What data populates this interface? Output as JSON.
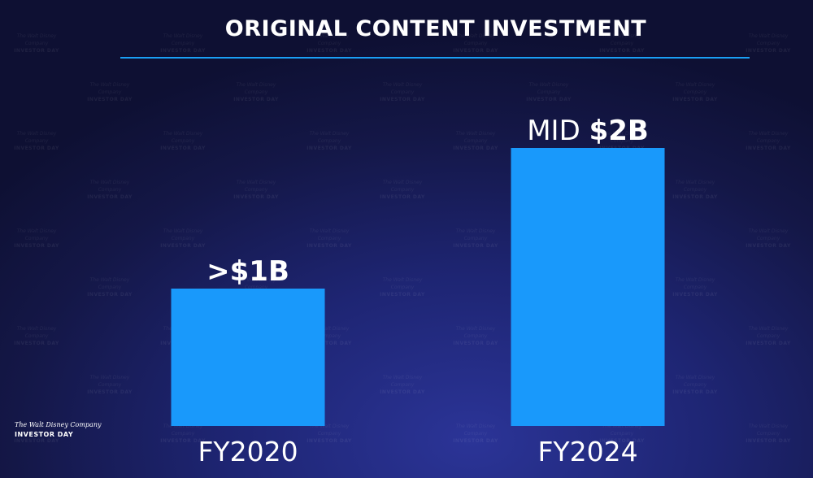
{
  "logo": {
    "line1": "The Walt Disney Company",
    "line2": "INVESTOR DAY"
  },
  "colors": {
    "bar": "#1999fb",
    "rule": "#1a9ff5",
    "background": "#1e2573"
  },
  "chart_data": {
    "type": "bar",
    "title": "ORIGINAL CONTENT INVESTMENT",
    "categories": [
      "FY2020",
      "FY2024"
    ],
    "values": [
      1,
      2
    ],
    "unit": "$B",
    "data_labels": [
      {
        "prefix": "",
        "value": ">$1B"
      },
      {
        "prefix": "MID ",
        "value": "$2B"
      }
    ],
    "axes_shown": false,
    "grid": false,
    "legend": "none"
  }
}
